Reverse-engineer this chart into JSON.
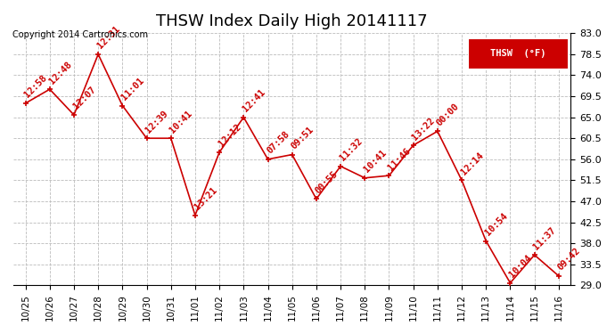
{
  "title": "THSW Index Daily High 20141117",
  "copyright": "Copyright 2014 Cartronics.com",
  "legend_label": "THSW  (°F)",
  "ylim": [
    29.0,
    83.0
  ],
  "yticks": [
    29.0,
    33.5,
    38.0,
    42.5,
    47.0,
    51.5,
    56.0,
    60.5,
    65.0,
    69.5,
    74.0,
    78.5,
    83.0
  ],
  "dates": [
    "10/25",
    "10/26",
    "10/27",
    "10/28",
    "10/29",
    "10/30",
    "10/31",
    "11/01",
    "11/02",
    "11/03",
    "11/04",
    "11/05",
    "11/06",
    "11/07",
    "11/08",
    "11/09",
    "11/10",
    "11/11",
    "11/12",
    "11/13",
    "11/14",
    "11/15",
    "11/16"
  ],
  "values": [
    68.0,
    71.0,
    65.5,
    78.5,
    67.5,
    60.5,
    60.5,
    44.0,
    57.5,
    65.0,
    56.0,
    57.0,
    47.5,
    54.5,
    52.0,
    52.5,
    59.0,
    62.0,
    51.5,
    38.5,
    29.5,
    35.5,
    31.0
  ],
  "labels": [
    "12:58",
    "12:48",
    "12:07",
    "12:31",
    "11:01",
    "12:39",
    "10:41",
    "13:21",
    "12:12",
    "12:41",
    "07:58",
    "09:51",
    "00:55",
    "11:32",
    "10:41",
    "11:46",
    "13:22",
    "00:00",
    "12:14",
    "10:54",
    "10:04",
    "11:37",
    "09:42"
  ],
  "line_color": "#cc0000",
  "background_color": "#ffffff",
  "grid_color": "#bbbbbb",
  "title_fontsize": 13,
  "label_fontsize": 7.5
}
